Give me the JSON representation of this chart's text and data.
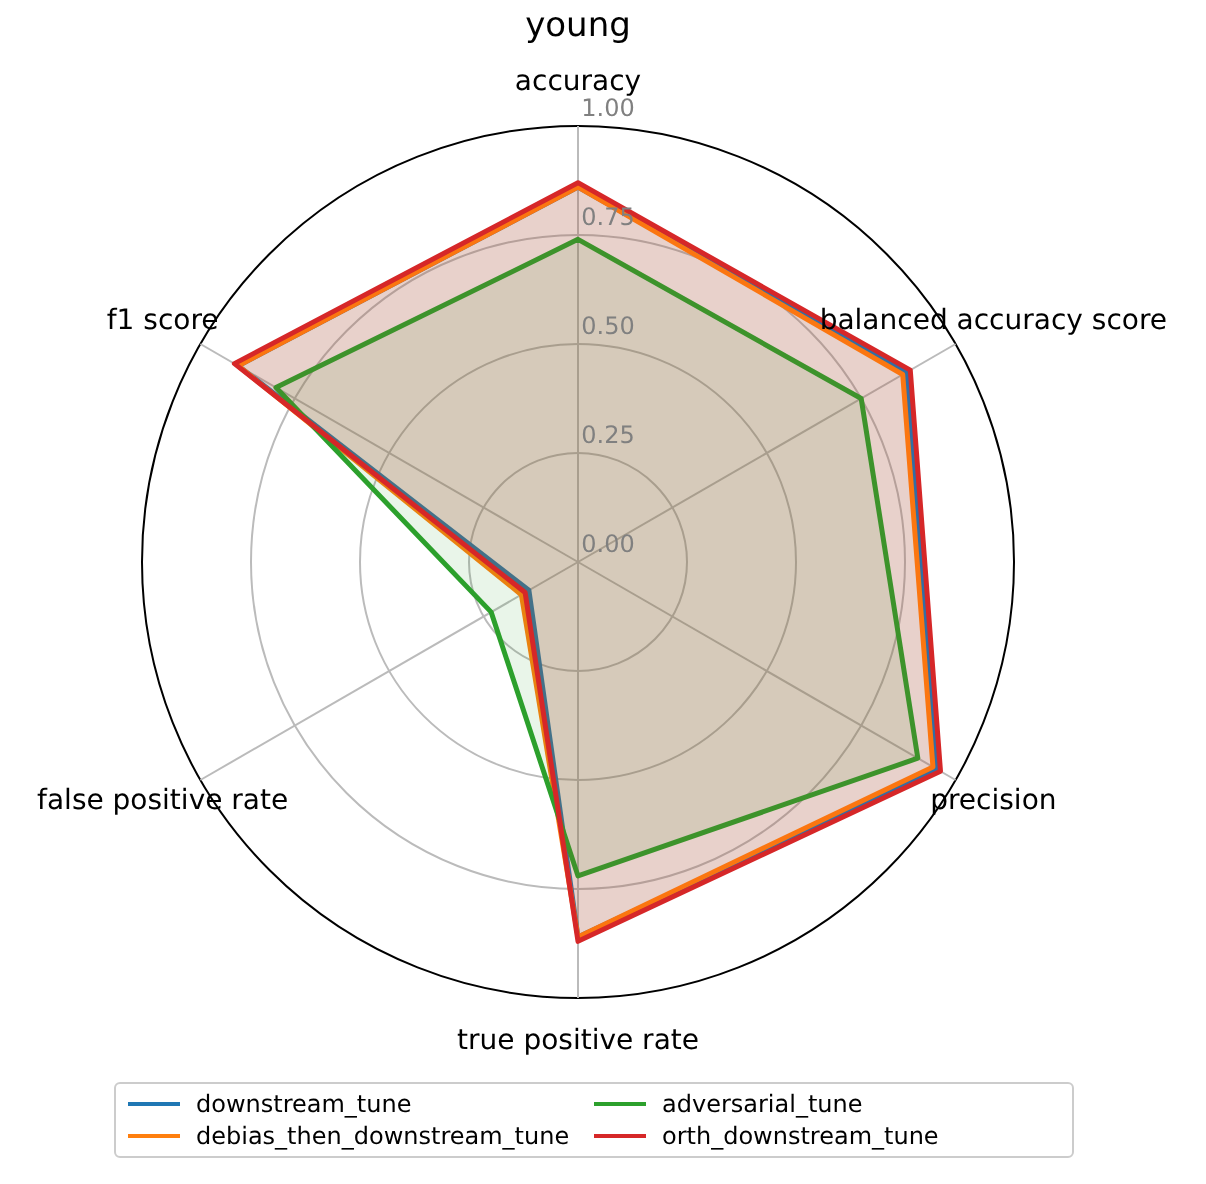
{
  "chart_data": {
    "type": "radar",
    "title": "young",
    "categories": [
      "accuracy",
      "balanced accuracy score",
      "precision",
      "true positive rate",
      "false positive rate",
      "f1 score"
    ],
    "ylim": [
      0,
      1
    ],
    "yticks": [
      {
        "value": 0,
        "label": "0.00"
      },
      0.25,
      {
        "value": 0.5,
        "label": "0.50"
      },
      0.75,
      {
        "value": 1,
        "label": "1.00"
      }
    ],
    "grid": true,
    "legend": "bottom",
    "marker": "none",
    "series": [
      {
        "name": "downstream_tune",
        "color": "#1f77b4",
        "values": [
          0.86,
          0.87,
          0.95,
          0.86,
          0.13,
          0.9
        ]
      },
      {
        "name": "debias_then_downstream_tune",
        "color": "#ff7f0e",
        "values": [
          0.86,
          0.86,
          0.94,
          0.86,
          0.15,
          0.9
        ]
      },
      {
        "name": "adversarial_tune",
        "color": "#2ca02c",
        "values": [
          0.74,
          0.75,
          0.9,
          0.72,
          0.23,
          0.8
        ]
      },
      {
        "name": "orth_downstream_tune",
        "color": "#d62728",
        "values": [
          0.87,
          0.88,
          0.96,
          0.87,
          0.14,
          0.91
        ]
      }
    ]
  }
}
